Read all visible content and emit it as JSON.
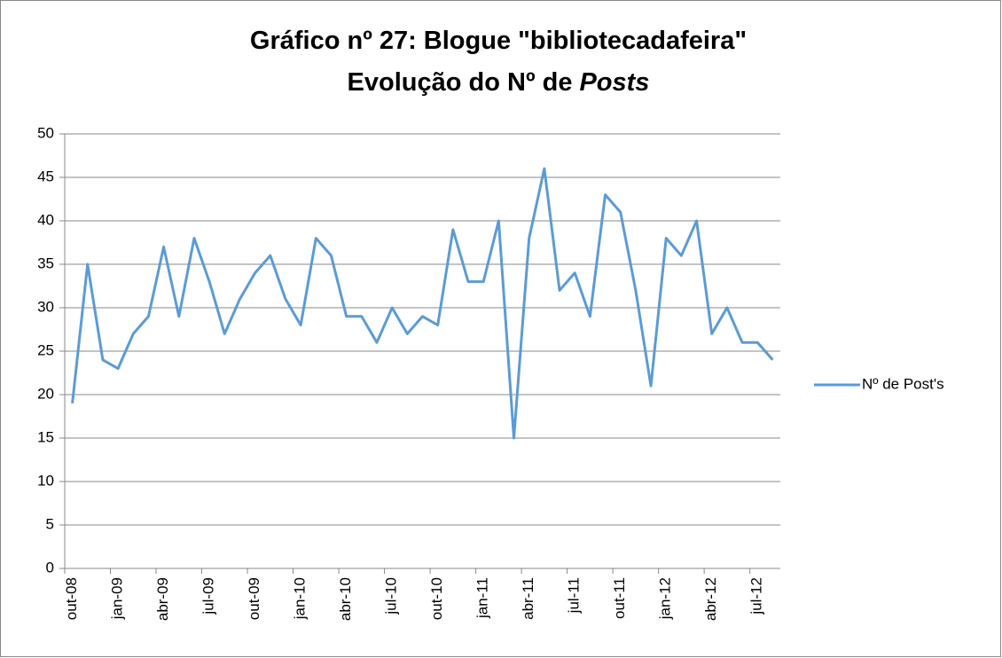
{
  "chart_data": {
    "type": "line",
    "title": [
      "Gráfico nº 27: Blogue \"bibliotecadafeira\"",
      "Evolução do Nº de",
      "Posts"
    ],
    "categories": [
      "out-08",
      null,
      null,
      "jan-09",
      null,
      null,
      "abr-09",
      null,
      null,
      "jul-09",
      null,
      null,
      "out-09",
      null,
      null,
      "jan-10",
      null,
      null,
      "abr-10",
      null,
      null,
      "jul-10",
      null,
      null,
      "out-10",
      null,
      null,
      "jan-11",
      null,
      null,
      "abr-11",
      null,
      null,
      "jul-11",
      null,
      null,
      "out-11",
      null,
      null,
      "jan-12",
      null,
      null,
      "abr-12",
      null,
      null,
      "jul-12",
      null
    ],
    "series": [
      {
        "name": "Nº de Post's",
        "color": "#5b9bd5",
        "values": [
          19,
          35,
          24,
          23,
          27,
          29,
          37,
          29,
          38,
          33,
          27,
          31,
          34,
          36,
          31,
          28,
          38,
          36,
          29,
          29,
          26,
          30,
          27,
          29,
          28,
          39,
          33,
          33,
          40,
          15,
          38,
          46,
          32,
          34,
          29,
          43,
          41,
          32,
          21,
          38,
          36,
          40,
          27,
          30,
          26,
          26,
          24
        ]
      }
    ],
    "ylim": [
      0,
      50
    ],
    "yticks": [
      0,
      5,
      10,
      15,
      20,
      25,
      30,
      35,
      40,
      45,
      50
    ],
    "grid": true,
    "legend": "right"
  }
}
